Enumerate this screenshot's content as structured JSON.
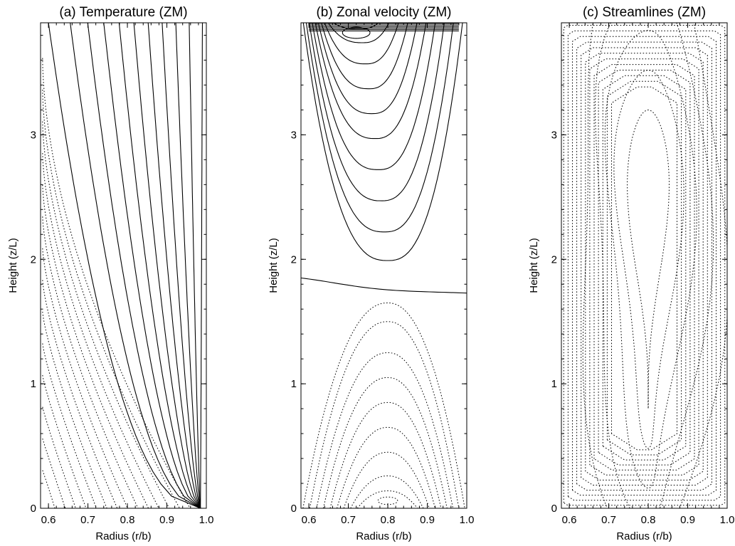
{
  "chart_data": [
    {
      "type": "contour",
      "title": "(a) Temperature (ZM)",
      "xlabel": "Radius (r/b)",
      "ylabel": "Height (z/L)",
      "xlim": [
        0.58,
        1.0
      ],
      "ylim": [
        0,
        3.9
      ],
      "xticks": [
        "0.6",
        "0.7",
        "0.8",
        "0.9",
        "1.0"
      ],
      "yticks": [
        "0",
        "1",
        "2",
        "3"
      ],
      "linestyle_note": "solid = positive contours, dotted = negative contours",
      "contours": {
        "solid_levels": 11,
        "dashed_levels": 14,
        "solid_foot_radius": 0.985,
        "solid_top_range": [
          0.6,
          0.99
        ],
        "dashed_top_range": [
          0.58,
          0.6
        ]
      }
    },
    {
      "type": "contour",
      "title": "(b) Zonal velocity (ZM)",
      "xlabel": "Radius (r/b)",
      "ylabel": "Height (z/L)",
      "xlim": [
        0.58,
        1.0
      ],
      "ylim": [
        0,
        3.9
      ],
      "xticks": [
        "0.6",
        "0.7",
        "0.8",
        "0.9",
        "1.0"
      ],
      "yticks": [
        "0",
        "1",
        "2",
        "3"
      ],
      "contours": {
        "zero_line_height": [
          1.85,
          1.7
        ],
        "upper_max_center": [
          0.72,
          3.85
        ],
        "upper_bottoms": [
          3.83,
          3.72,
          3.55,
          3.35,
          3.15,
          2.95,
          2.7,
          2.45,
          2.2,
          1.97
        ],
        "lower_min_center": [
          0.8,
          0.06
        ],
        "lower_tops": [
          0.14,
          0.26,
          0.45,
          0.65,
          0.85,
          1.05,
          1.25,
          1.5,
          1.65
        ]
      }
    },
    {
      "type": "contour",
      "title": "(c) Streamlines (ZM)",
      "xlabel": "Radius (r/b)",
      "ylabel": "Height (z/L)",
      "xlim": [
        0.58,
        1.0
      ],
      "ylim": [
        0,
        3.9
      ],
      "xticks": [
        "0.6",
        "0.7",
        "0.8",
        "0.9",
        "1.0"
      ],
      "yticks": [
        "0",
        "1",
        "2",
        "3"
      ],
      "contours": {
        "center_radius": 0.8,
        "center_height": 2.0,
        "inner_half_widths": [
          0.035,
          0.07,
          0.1,
          0.14,
          0.18
        ],
        "boundary_layer_lines": 12
      }
    }
  ]
}
